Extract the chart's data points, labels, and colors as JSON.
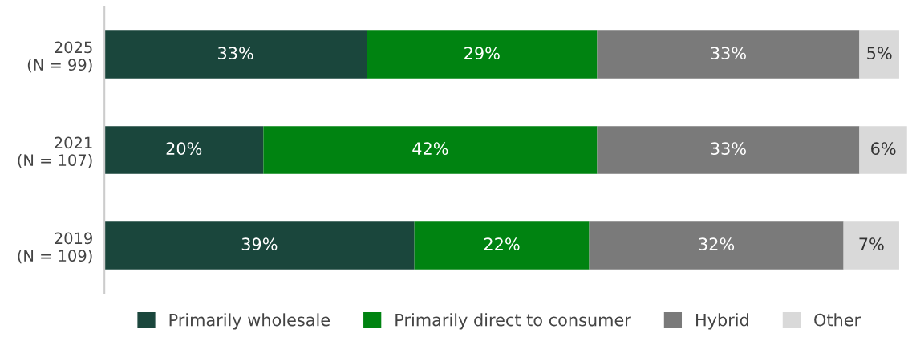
{
  "chart_data": {
    "type": "bar",
    "orientation": "horizontal",
    "stacked": true,
    "legend": "bottom",
    "tick_labels": "y",
    "grid": false,
    "categories": [
      "2025\n(N = 99)",
      "2021\n(N = 107)",
      "2019\n(N = 109)"
    ],
    "series": [
      {
        "name": "Primarily wholesale",
        "color": "#1a463c",
        "values": [
          33,
          20,
          39
        ],
        "value_labels": [
          "33%",
          "20%",
          "39%"
        ]
      },
      {
        "name": "Primarily direct to consumer",
        "color": "#008311",
        "values": [
          29,
          42,
          22
        ],
        "value_labels": [
          "29%",
          "42%",
          "22%"
        ]
      },
      {
        "name": "Hybrid",
        "color": "#7a7a7a",
        "values": [
          33,
          33,
          32
        ],
        "value_labels": [
          "33%",
          "33%",
          "32%"
        ]
      },
      {
        "name": "Other",
        "color": "#d9d9d9",
        "values": [
          5,
          6,
          7
        ],
        "value_labels": [
          "5%",
          "6%",
          "7%"
        ]
      }
    ]
  }
}
